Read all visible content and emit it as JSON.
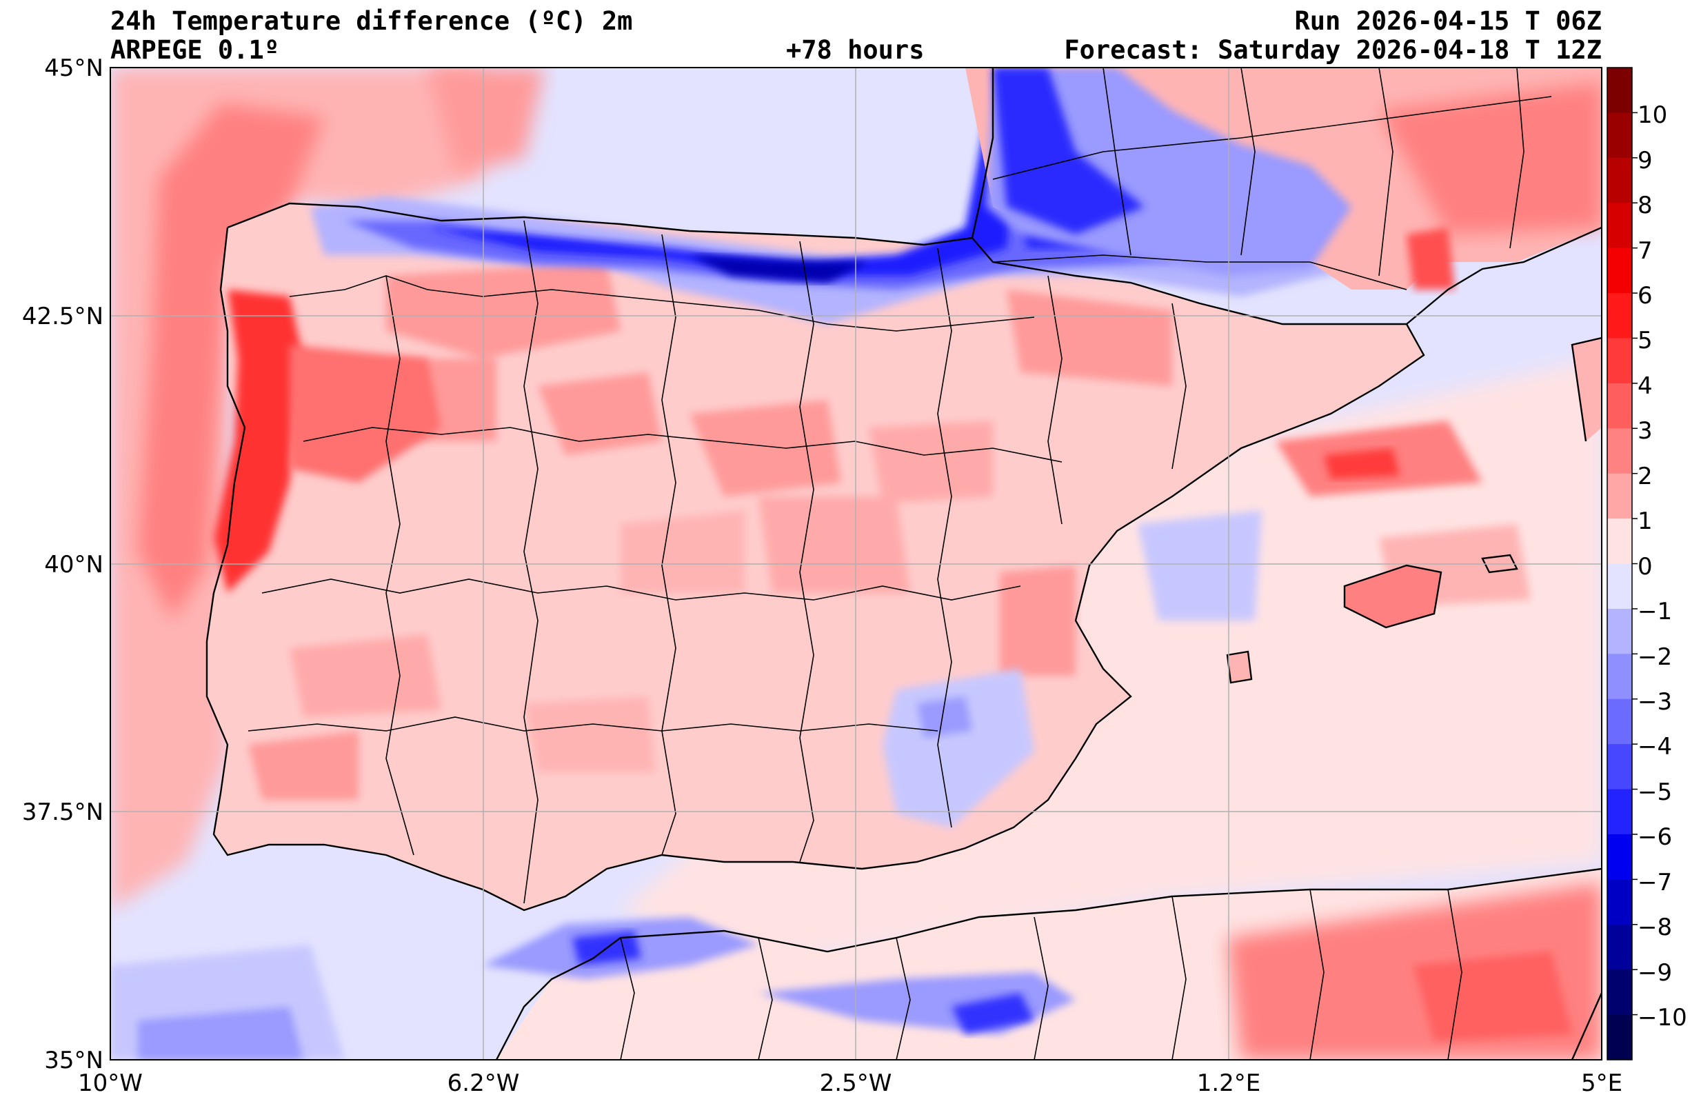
{
  "header": {
    "title": "24h Temperature difference (ºC) 2m",
    "model": "ARPEGE 0.1º",
    "lead_time": "+78 hours",
    "run": "Run 2026-04-15 T 06Z",
    "forecast": "Forecast: Saturday 2026-04-18 T 12Z"
  },
  "map": {
    "lat_labels": [
      "45°N",
      "42.5°N",
      "40°N",
      "37.5°N",
      "35°N"
    ],
    "lon_labels": [
      "10°W",
      "6.2°W",
      "2.5°W",
      "1.2°E",
      "5°E"
    ],
    "lat_values": [
      45,
      42.5,
      40,
      37.5,
      35
    ],
    "lon_values": [
      -10,
      -6.25,
      -2.5,
      1.25,
      5
    ]
  },
  "colorbar": {
    "ticks": [
      "10",
      "9",
      "8",
      "7",
      "6",
      "5",
      "4",
      "3",
      "2",
      "1",
      "0",
      "−1",
      "−2",
      "−3",
      "−4",
      "−5",
      "−6",
      "−7",
      "−8",
      "−9",
      "−10"
    ],
    "colors": [
      "#7d0000",
      "#9b0000",
      "#b90000",
      "#d70000",
      "#f50000",
      "#ff1919",
      "#ff3a3a",
      "#ff5e5e",
      "#ff8282",
      "#ffa6a6",
      "#ffe3e3",
      "#e3e3ff",
      "#b3b3ff",
      "#8f8fff",
      "#6b6bff",
      "#4747ff",
      "#2323ff",
      "#0000f0",
      "#0000c5",
      "#00009a",
      "#00006f",
      "#000050"
    ]
  },
  "legend_palette": {
    "sea_light_blue": "#e3e3ff",
    "light_pink": "#ffe3e3",
    "pink": "#ffb4b4",
    "salmon": "#ff8080",
    "red": "#ff3030",
    "blue_light": "#b0b0ff",
    "blue_mid": "#6060ff",
    "blue_dark": "#0000d0",
    "navy": "#000090"
  }
}
